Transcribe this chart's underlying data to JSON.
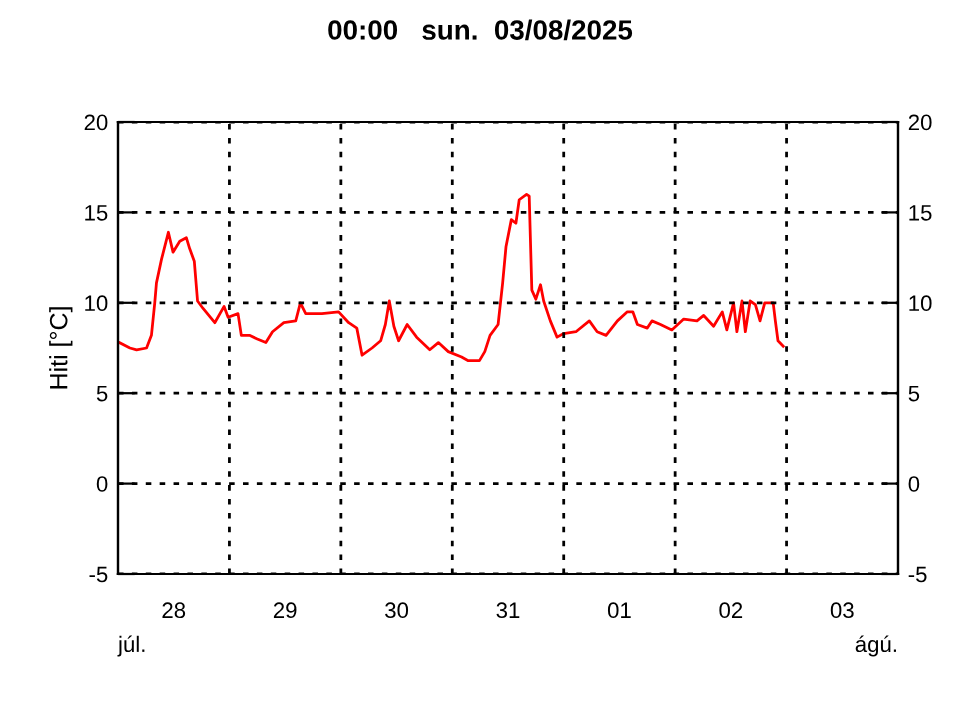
{
  "chart_data": {
    "type": "line",
    "title": "00:00   sun.  03/08/2025",
    "ylabel": "Hiti [°C]",
    "annotations": [
      "júl.",
      "ágú."
    ],
    "series": [
      {
        "color": "#ff0000",
        "x": [
          "2025-07-28T00:17",
          "2025-07-28T02:34",
          "2025-07-28T04:00",
          "2025-07-28T06:09",
          "2025-07-28T07:12",
          "2025-07-28T07:55",
          "2025-07-28T08:17",
          "2025-07-28T09:22",
          "2025-07-28T10:51",
          "2025-07-28T11:51",
          "2025-07-28T13:18",
          "2025-07-28T14:43",
          "2025-07-28T15:26",
          "2025-07-28T16:26",
          "2025-07-28T17:08",
          "2025-07-28T18:17",
          "2025-07-28T20:51",
          "2025-07-28T22:51",
          "2025-07-28T23:43",
          "2025-07-29T01:51",
          "2025-07-29T02:34",
          "2025-07-29T04:19",
          "2025-07-29T06:00",
          "2025-07-29T07:51",
          "2025-07-29T09:17",
          "2025-07-29T11:43",
          "2025-07-29T14:17",
          "2025-07-29T15:17",
          "2025-07-29T16:26",
          "2025-07-29T19:55",
          "2025-07-29T23:31",
          "2025-07-30T01:41",
          "2025-07-30T03:26",
          "2025-07-30T04:34",
          "2025-07-30T06:43",
          "2025-07-30T08:34",
          "2025-07-30T09:35",
          "2025-07-30T10:26",
          "2025-07-30T11:25",
          "2025-07-30T12:26",
          "2025-07-30T14:17",
          "2025-07-30T16:19",
          "2025-07-30T19:09",
          "2025-07-30T21:00",
          "2025-07-30T23:08",
          "2025-07-31T02:00",
          "2025-07-31T03:26",
          "2025-07-31T05:51",
          "2025-07-31T07:00",
          "2025-07-31T08:08",
          "2025-07-31T09:52",
          "2025-07-31T10:51",
          "2025-07-31T11:34",
          "2025-07-31T12:43",
          "2025-07-31T13:42",
          "2025-07-31T14:25",
          "2025-07-31T16:00",
          "2025-07-31T16:34",
          "2025-07-31T17:08",
          "2025-07-31T18:00",
          "2025-07-31T19:00",
          "2025-07-31T19:41",
          "2025-07-31T21:07",
          "2025-07-31T22:34",
          "2025-08-01T00:00",
          "2025-08-01T02:38",
          "2025-08-01T05:31",
          "2025-08-01T07:12",
          "2025-08-01T09:07",
          "2025-08-01T11:34",
          "2025-08-01T13:42",
          "2025-08-01T14:53",
          "2025-08-01T15:52",
          "2025-08-01T18:00",
          "2025-08-01T19:00",
          "2025-08-01T20:51",
          "2025-08-01T23:17",
          "2025-08-02T01:51",
          "2025-08-02T04:42",
          "2025-08-02T06:09",
          "2025-08-02T08:17",
          "2025-08-02T10:09",
          "2025-08-02T11:08",
          "2025-08-02T12:35",
          "2025-08-02T13:18",
          "2025-08-02T14:24",
          "2025-08-02T15:07",
          "2025-08-02T16:09",
          "2025-08-02T17:17",
          "2025-08-02T18:17",
          "2025-08-02T19:18",
          "2025-08-02T21:07",
          "2025-08-02T21:35",
          "2025-08-02T22:09",
          "2025-08-02T23:17"
        ],
        "values": [
          7.8,
          7.5,
          7.4,
          7.5,
          8.2,
          10.0,
          11.1,
          12.4,
          13.9,
          12.8,
          13.4,
          13.6,
          13.0,
          12.3,
          10.1,
          9.7,
          8.9,
          9.8,
          9.2,
          9.4,
          8.2,
          8.2,
          8.0,
          7.8,
          8.4,
          8.9,
          9.0,
          10.0,
          9.4,
          9.4,
          9.5,
          8.9,
          8.6,
          7.1,
          7.5,
          7.9,
          8.8,
          10.1,
          8.7,
          7.9,
          8.8,
          8.1,
          7.4,
          7.8,
          7.3,
          7.0,
          6.8,
          6.8,
          7.3,
          8.2,
          8.8,
          11.1,
          13.1,
          14.6,
          14.4,
          15.7,
          16.0,
          15.9,
          10.7,
          10.2,
          11.0,
          10.1,
          9.0,
          8.1,
          8.3,
          8.4,
          9.0,
          8.4,
          8.2,
          9.0,
          9.5,
          9.5,
          8.8,
          8.6,
          9.0,
          8.8,
          8.5,
          9.1,
          9.0,
          9.3,
          8.7,
          9.5,
          8.5,
          10.0,
          8.4,
          10.1,
          8.4,
          10.1,
          9.9,
          9.0,
          10.0,
          10.0,
          9.0,
          7.9,
          7.6
        ]
      }
    ],
    "xlim": [
      "2025-07-28",
      "2025-08-04"
    ],
    "xticks": [
      {
        "value": "2025-07-29",
        "label": null
      },
      {
        "value": "2025-07-30",
        "label": null
      },
      {
        "value": "2025-07-31",
        "label": null
      },
      {
        "value": "2025-08-01",
        "label": null
      },
      {
        "value": "2025-08-02",
        "label": null
      },
      {
        "value": "2025-08-03",
        "label": null
      },
      {
        "value": "2025-07-28T12:00",
        "label": "28"
      },
      {
        "value": "2025-07-29T12:00",
        "label": "29"
      },
      {
        "value": "2025-07-30T12:00",
        "label": "30"
      },
      {
        "value": "2025-07-31T12:00",
        "label": "31"
      },
      {
        "value": "2025-08-01T12:00",
        "label": "01"
      },
      {
        "value": "2025-08-02T12:00",
        "label": "02"
      },
      {
        "value": "2025-08-03T12:00",
        "label": "03"
      }
    ],
    "ylim": [
      -5,
      20
    ],
    "yticks": [
      -5,
      0,
      5,
      10,
      15,
      20
    ],
    "y2lim": [
      -5,
      20
    ],
    "y2ticks": [
      -5,
      0,
      5,
      10,
      15,
      20
    ],
    "grid": true,
    "line_style": "solid",
    "marker": "none",
    "legend": false
  }
}
